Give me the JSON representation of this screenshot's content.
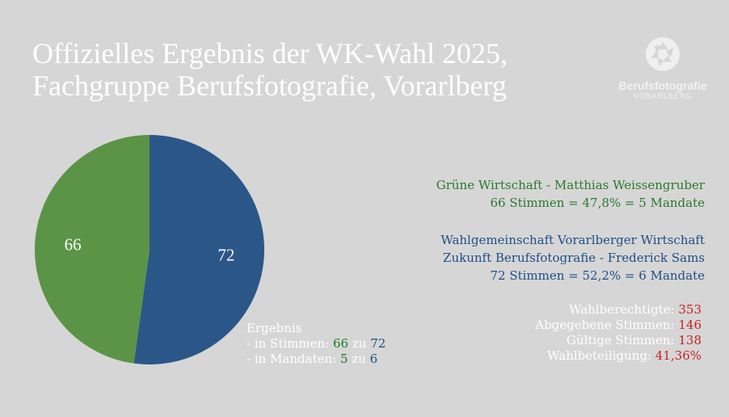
{
  "title": {
    "line1": "Offizielles Ergebnis der WK-Wahl 2025,",
    "line2": "Fachgruppe Berufsfotografie, Vorarlberg"
  },
  "logo": {
    "name": "Berufsfotografie",
    "sub": "VORARLBERG",
    "icon": "aperture-icon"
  },
  "colors": {
    "green": "#5b9446",
    "blue": "#2b5688",
    "green_text": "#2a7a2a",
    "blue_text": "#1d4f86",
    "red_text": "#cc1f1f",
    "background": "#d6d6d6"
  },
  "chart_data": {
    "type": "pie",
    "slices": [
      {
        "label": "72",
        "value": 72,
        "color": "#2b5688"
      },
      {
        "label": "66",
        "value": 66,
        "color": "#5b9446"
      }
    ]
  },
  "result": {
    "heading": "Ergebnis",
    "votes_prefix": "- in Stimmen:",
    "votes_green": "66",
    "votes_sep": "zu",
    "votes_blue": "72",
    "mandates_prefix": "- in Mandaten:",
    "mandates_green": "5",
    "mandates_sep": "zu",
    "mandates_blue": "6"
  },
  "parties": {
    "green": {
      "name": "Grüne Wirtschaft - Matthias Weissengruber",
      "summary": "66 Stimmen = 47,8% = 5 Mandate"
    },
    "blue": {
      "name1": "Wahlgemeinschaft Vorarlberger Wirtschaft",
      "name2": "Zukunft Berufsfotografie - Frederick Sams",
      "summary": "72 Stimmen = 52,2% = 6 Mandate"
    }
  },
  "stats": {
    "eligible_label": "Wahlberechtigte:",
    "eligible_value": "353",
    "cast_label": "Abgegebene Stimmen:",
    "cast_value": "146",
    "valid_label": "Gültige Stimmen:",
    "valid_value": "138",
    "turnout_label": "Wahlbeteiligung:",
    "turnout_value": "41,36%"
  }
}
